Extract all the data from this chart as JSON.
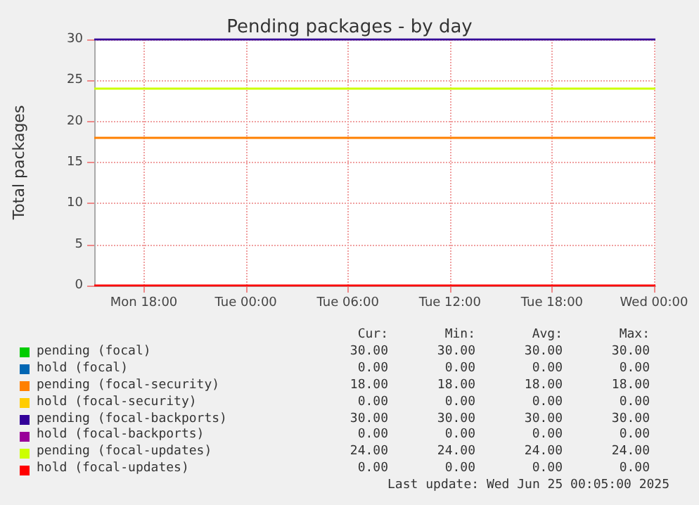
{
  "chart_data": {
    "type": "line",
    "title": "Pending packages - by day",
    "ylabel": "Total packages",
    "x": [
      "2025-06-23T15:05",
      "2025-06-25T00:05"
    ],
    "xlim": [
      "2025-06-23T15:05",
      "2025-06-25T00:05"
    ],
    "xticks": [
      {
        "value": "2025-06-23T18:00",
        "label": "Mon 18:00"
      },
      {
        "value": "2025-06-24T00:00",
        "label": "Tue 00:00"
      },
      {
        "value": "2025-06-24T06:00",
        "label": "Tue 06:00"
      },
      {
        "value": "2025-06-24T12:00",
        "label": "Tue 12:00"
      },
      {
        "value": "2025-06-24T18:00",
        "label": "Tue 18:00"
      },
      {
        "value": "2025-06-25T00:00",
        "label": "Wed 00:00"
      }
    ],
    "ylim": [
      0,
      30
    ],
    "yticks": [
      0,
      5,
      10,
      15,
      20,
      25,
      30
    ],
    "grid": true,
    "legend": "bottom",
    "marker": "none",
    "series": [
      {
        "name": "pending (focal)",
        "color": "#00cc00",
        "values": [
          null,
          null
        ]
      },
      {
        "name": "hold (focal)",
        "color": "#0066b3",
        "values": [
          null,
          null
        ]
      },
      {
        "name": "pending (focal-security)",
        "color": "#ff8000",
        "values": [
          18,
          18
        ]
      },
      {
        "name": "hold (focal-security)",
        "color": "#ffcc00",
        "values": [
          null,
          null
        ]
      },
      {
        "name": "pending (focal-backports)",
        "color": "#330099",
        "values": [
          30,
          30
        ]
      },
      {
        "name": "hold (focal-backports)",
        "color": "#990099",
        "values": [
          null,
          null
        ]
      },
      {
        "name": "pending (focal-updates)",
        "color": "#ccff00",
        "values": [
          24,
          24
        ]
      },
      {
        "name": "hold (focal-updates)",
        "color": "#ff0000",
        "values": [
          0,
          0
        ]
      }
    ],
    "annotations": [
      "Cur:",
      "Min:",
      "Avg:",
      "Max:",
      "30.00",
      "30.00",
      "30.00",
      "30.00",
      "0.00",
      "0.00",
      "0.00",
      "0.00",
      "18.00",
      "18.00",
      "18.00",
      "18.00",
      "0.00",
      "0.00",
      "0.00",
      "0.00",
      "30.00",
      "30.00",
      "30.00",
      "30.00",
      "0.00",
      "0.00",
      "0.00",
      "0.00",
      "24.00",
      "24.00",
      "24.00",
      "24.00",
      "0.00",
      "0.00",
      "0.00",
      "0.00",
      "Last update: Wed Jun 25 00:05:00 2025"
    ]
  }
}
